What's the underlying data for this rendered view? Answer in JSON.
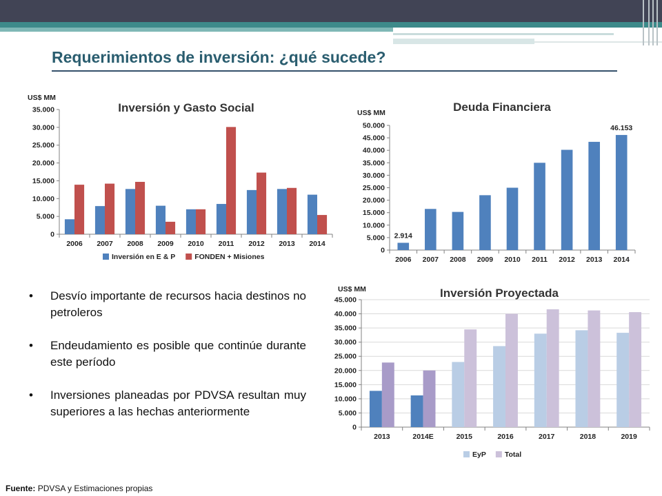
{
  "slide": {
    "title": "Requerimientos de inversión: ¿qué sucede?",
    "bullets": [
      "Desvío importante de recursos hacia destinos no petroleros",
      "Endeudamiento es posible que continúe durante este período",
      "Inversiones planeadas por PDVSA resultan muy superiores a las hechas anteriormente"
    ],
    "bullet_glyph": "•",
    "source_label": "Fuente:",
    "source_text": "PDVSA y Estimaciones propias"
  },
  "chart_data": [
    {
      "type": "bar",
      "title": "Inversión y Gasto Social",
      "ylabel": "US$ MM",
      "categories": [
        "2006",
        "2007",
        "2008",
        "2009",
        "2010",
        "2011",
        "2012",
        "2013",
        "2014"
      ],
      "series": [
        {
          "name": "Inversión en E & P",
          "color": "#4f81bd",
          "values": [
            4200,
            7900,
            12700,
            8000,
            7000,
            8500,
            12400,
            12700,
            11100
          ]
        },
        {
          "name": "FONDEN + Misiones",
          "color": "#c0504d",
          "values": [
            13900,
            14200,
            14700,
            3500,
            7000,
            30100,
            17300,
            13000,
            5400
          ]
        }
      ],
      "ylim": [
        0,
        35000
      ],
      "yticks": [
        0,
        5000,
        10000,
        15000,
        20000,
        25000,
        30000,
        35000
      ],
      "ytick_labels": [
        "0",
        "5.000",
        "10.000",
        "15.000",
        "20.000",
        "25.000",
        "30.000",
        "35.000"
      ],
      "legend_position": "bottom",
      "grid": false
    },
    {
      "type": "bar",
      "title": "Deuda Financiera",
      "ylabel": "US$ MM",
      "categories": [
        "2006",
        "2007",
        "2008",
        "2009",
        "2010",
        "2011",
        "2012",
        "2013",
        "2014"
      ],
      "series": [
        {
          "color": "#4f81bd",
          "values": [
            2914,
            16500,
            15300,
            22000,
            25000,
            35000,
            40200,
            43400,
            46153
          ]
        }
      ],
      "data_labels": [
        {
          "index": 0,
          "text": "2.914"
        },
        {
          "index": 8,
          "text": "46.153"
        }
      ],
      "ylim": [
        0,
        50000
      ],
      "yticks": [
        0,
        5000,
        10000,
        15000,
        20000,
        25000,
        30000,
        35000,
        40000,
        45000,
        50000
      ],
      "ytick_labels": [
        "0",
        "5.000",
        "10.000",
        "15.000",
        "20.000",
        "25.000",
        "30.000",
        "35.000",
        "40.000",
        "45.000",
        "50.000"
      ],
      "grid": false
    },
    {
      "type": "bar",
      "title": "Inversión Proyectada",
      "ylabel": "US$ MM",
      "categories": [
        "2013",
        "2014E",
        "2015",
        "2016",
        "2017",
        "2018",
        "2019"
      ],
      "series": [
        {
          "name": "EyP",
          "color": "#b9cde5",
          "values": [
            12800,
            11200,
            23000,
            28600,
            33000,
            34200,
            33300
          ],
          "point_colors": [
            "#4f81bd",
            "#4f81bd",
            "#b9cde5",
            "#b9cde5",
            "#b9cde5",
            "#b9cde5",
            "#b9cde5"
          ]
        },
        {
          "name": "Total",
          "color": "#ccc1da",
          "values": [
            22800,
            20000,
            34500,
            40000,
            41600,
            41200,
            40600
          ],
          "point_colors": [
            "#a89bc8",
            "#a89bc8",
            "#ccc1da",
            "#ccc1da",
            "#ccc1da",
            "#ccc1da",
            "#ccc1da"
          ]
        }
      ],
      "ylim": [
        0,
        45000
      ],
      "yticks": [
        0,
        5000,
        10000,
        15000,
        20000,
        25000,
        30000,
        35000,
        40000,
        45000
      ],
      "ytick_labels": [
        "0",
        "5.000",
        "10.000",
        "15.000",
        "20.000",
        "25.000",
        "30.000",
        "35.000",
        "40.000",
        "45.000"
      ],
      "legend_position": "bottom",
      "grid": true
    }
  ]
}
